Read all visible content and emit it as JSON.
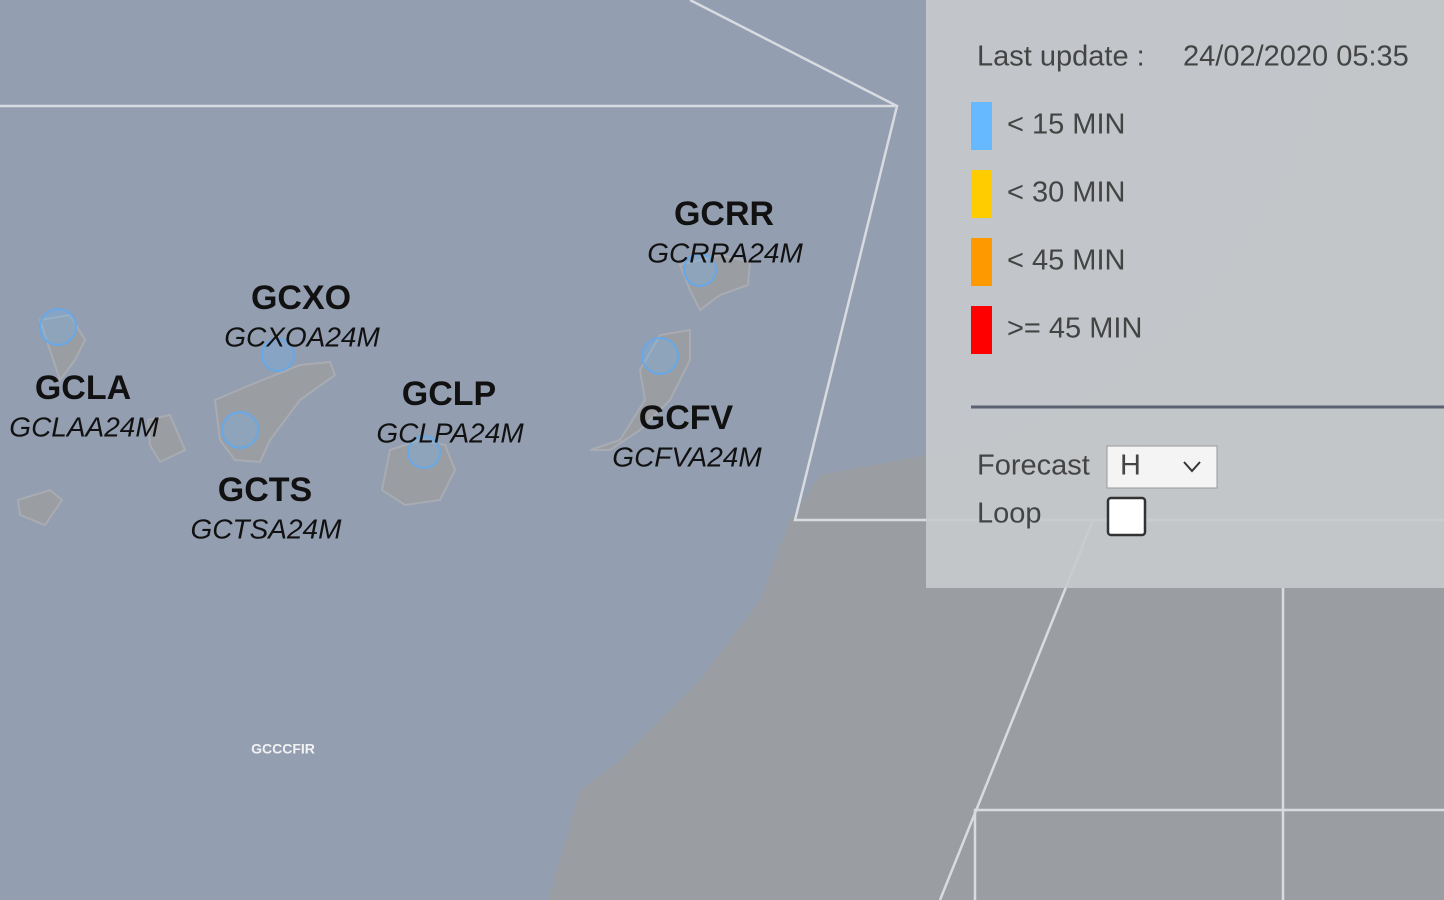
{
  "header": {
    "last_update_label": "Last update :",
    "last_update": "24/02/2020 05:35"
  },
  "legend": [
    {
      "label": "< 15 MIN",
      "color": "#66b8ff"
    },
    {
      "label": "< 30 MIN",
      "color": "#ffcc00"
    },
    {
      "label": "< 45 MIN",
      "color": "#ff9900"
    },
    {
      "label": ">= 45 MIN",
      "color": "#ff0000"
    }
  ],
  "stations": [
    {
      "code": "GCRR",
      "report": "GCRRA24M"
    },
    {
      "code": "GCXO",
      "report": "GCXOA24M"
    },
    {
      "code": "GCLA",
      "report": "GCLAA24M"
    },
    {
      "code": "GCLP",
      "report": "GCLPA24M"
    },
    {
      "code": "GCFV",
      "report": "GCFVA24M"
    },
    {
      "code": "GCTS",
      "report": "GCTSA24M"
    }
  ],
  "fir": "GCCCFIR",
  "controls": {
    "forecast_label": "Forecast",
    "forecast_value": "H",
    "loop_label": "Loop"
  }
}
